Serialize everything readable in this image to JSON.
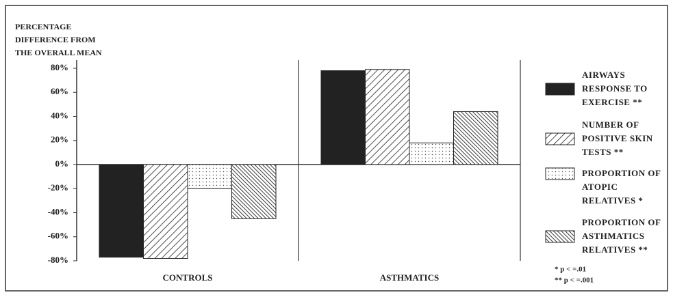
{
  "chart_data": {
    "type": "bar",
    "ylabel": [
      "PERCENTAGE",
      "DIFFERENCE FROM",
      "THE OVERALL MEAN"
    ],
    "categories": [
      "CONTROLS",
      "ASTHMATICS"
    ],
    "series": [
      {
        "name": "AIRWAYS RESPONSE TO EXERCISE **",
        "color": "#222222",
        "pattern": "solid",
        "values": [
          -77,
          78
        ]
      },
      {
        "name": "NUMBER OF POSITIVE SKIN TESTS **",
        "color": "#222222",
        "pattern": "diagonal",
        "values": [
          -78,
          79
        ]
      },
      {
        "name": "PROPORTION OF ATOPIC RELATIVES *",
        "color": "#222222",
        "pattern": "dots",
        "values": [
          -20,
          18
        ]
      },
      {
        "name": "PROPORTION OF ASTHMATICS RELATIVES **",
        "color": "#222222",
        "pattern": "dense-diagonal",
        "values": [
          -45,
          44
        ]
      }
    ],
    "ylim": [
      -80,
      80
    ],
    "yticks": [
      {
        "value": -80,
        "label": "-80%"
      },
      {
        "value": -60,
        "label": "-60%"
      },
      {
        "value": -40,
        "label": "-40%"
      },
      {
        "value": -20,
        "label": "-20%"
      },
      {
        "value": 0,
        "label": "0%"
      },
      {
        "value": 20,
        "label": "20%"
      },
      {
        "value": 40,
        "label": "40%"
      },
      {
        "value": 60,
        "label": "60%"
      },
      {
        "value": 80,
        "label": "80%"
      }
    ],
    "annotations": [
      "* p < =.01",
      "** p < =.001"
    ],
    "legend": "right"
  }
}
